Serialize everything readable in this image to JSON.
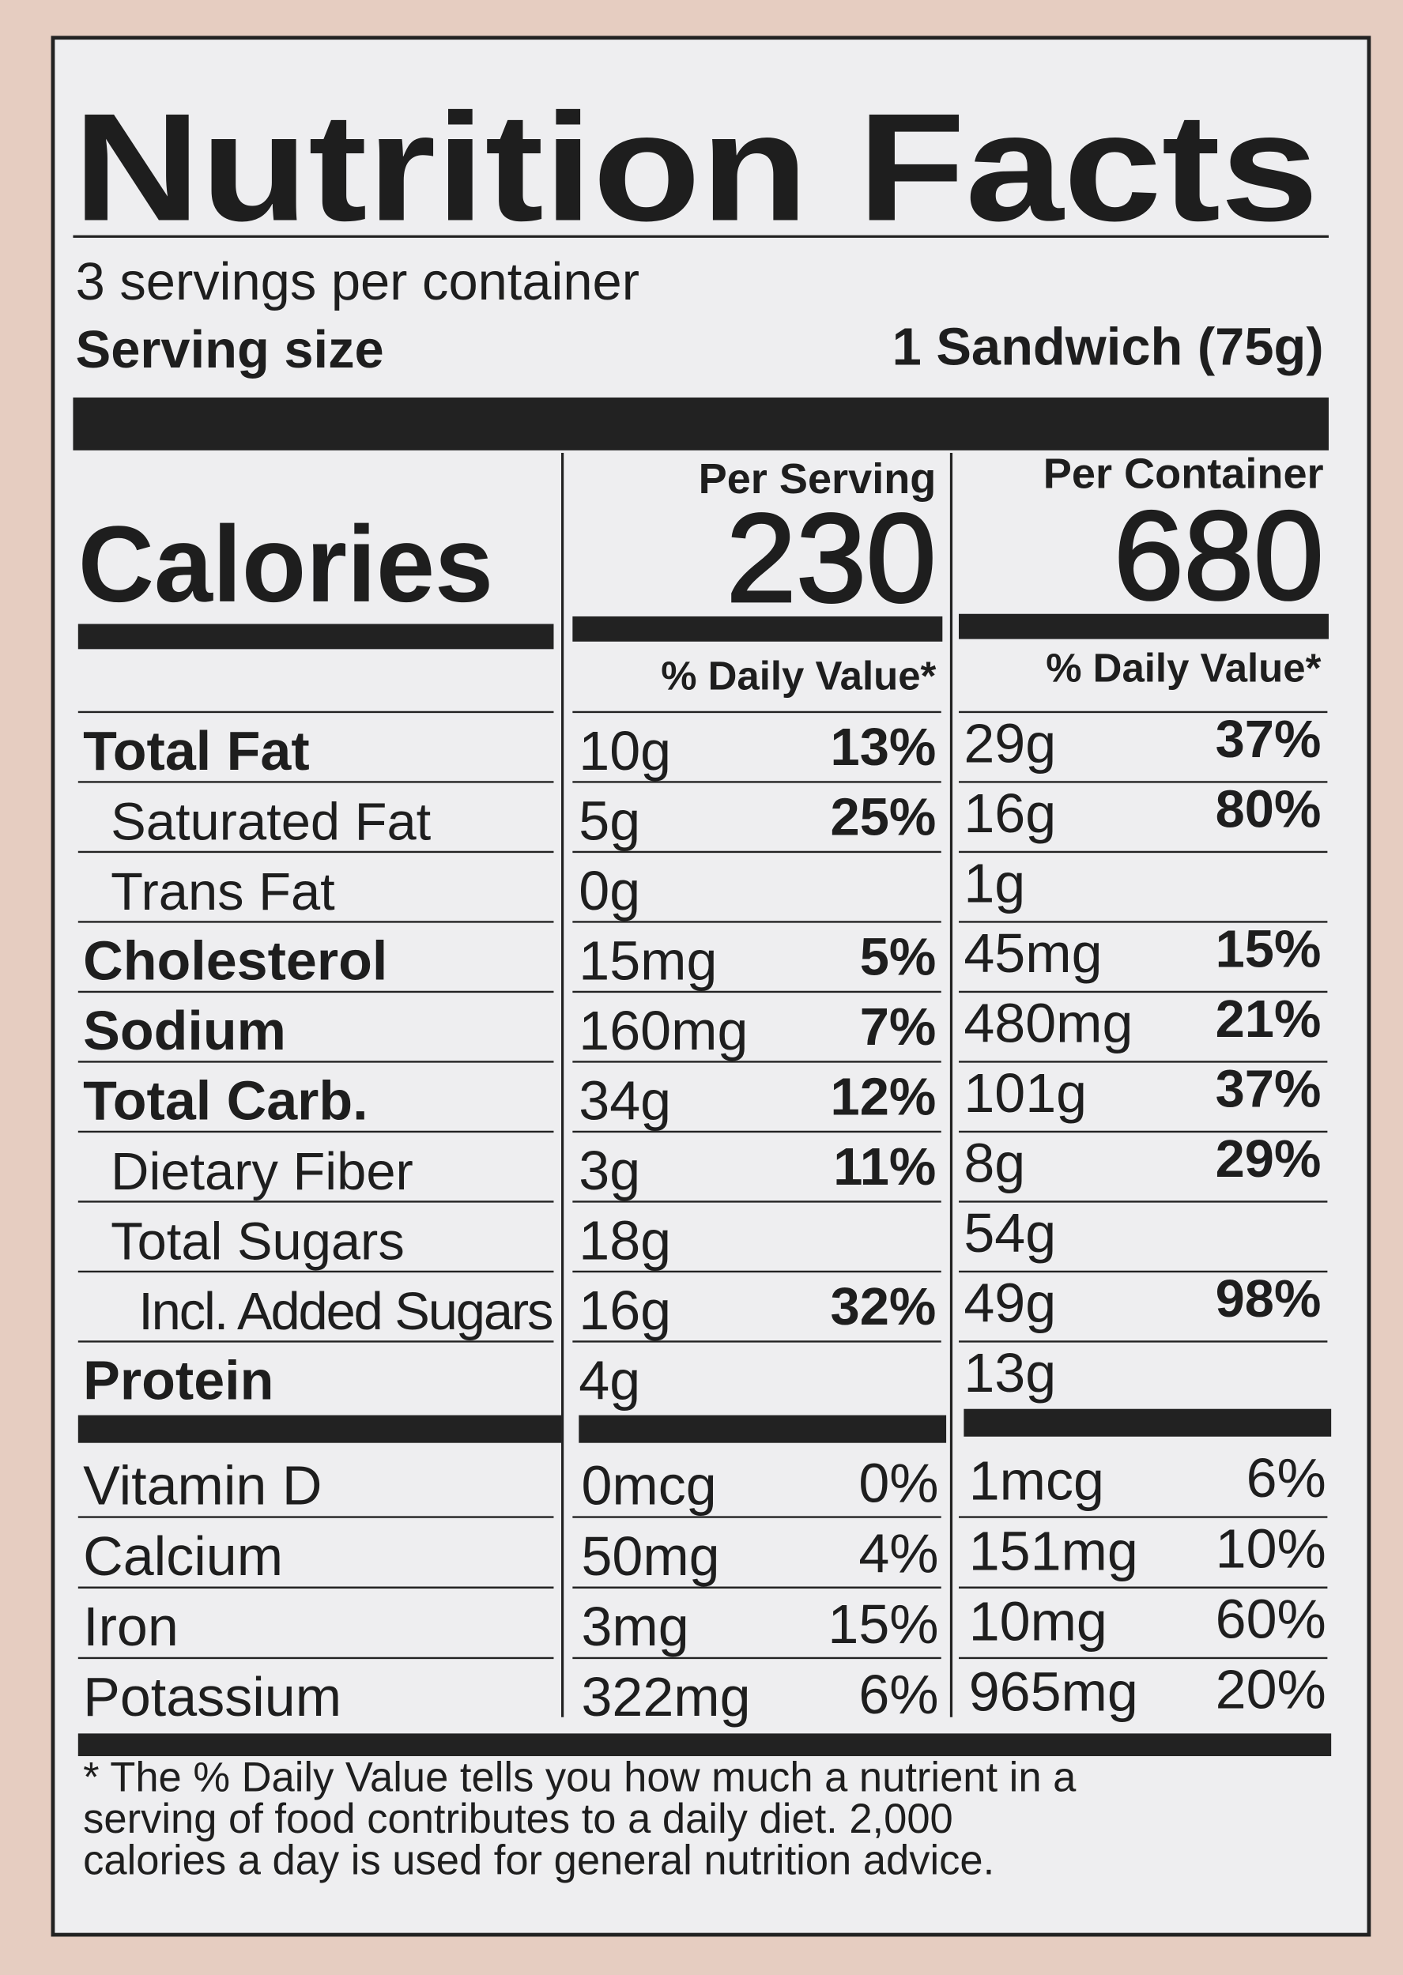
{
  "header": {
    "title": "Nutrition Facts",
    "servings": "3 servings per container",
    "serving_size_label": "Serving size",
    "serving_size_value": "1 Sandwich (75g)"
  },
  "calories": {
    "label": "Calories",
    "per_serving_label": "Per Serving",
    "per_serving": "230",
    "per_container_label": "Per Container",
    "per_container": "680",
    "dv_header_serving": "% Daily Value*",
    "dv_header_container": "% Daily Value*"
  },
  "nutrients": [
    [
      "Total Fat",
      "10g",
      "13%",
      "29g",
      "37%"
    ],
    [
      "Saturated Fat",
      "5g",
      "25%",
      "16g",
      "80%"
    ],
    [
      "Trans Fat",
      "0g",
      null,
      "1g",
      null
    ],
    [
      "Cholesterol",
      "15mg",
      "5%",
      "45mg",
      "15%"
    ],
    [
      "Sodium",
      "160mg",
      "7%",
      "480mg",
      "21%"
    ],
    [
      "Total Carb.",
      "34g",
      "12%",
      "101g",
      "37%"
    ],
    [
      "Dietary Fiber",
      "3g",
      "11%",
      "8g",
      "29%"
    ],
    [
      "Total Sugars",
      "18g",
      null,
      "54g",
      null
    ],
    [
      "Incl. Added Sugars",
      "16g",
      "32%",
      "49g",
      "98%"
    ],
    [
      "Protein",
      "4g",
      null,
      "13g",
      null
    ]
  ],
  "vitamins": [
    [
      "Vitamin D",
      "0mcg",
      "0%",
      "1mcg",
      "6%"
    ],
    [
      "Calcium",
      "50mg",
      "4%",
      "151mg",
      "10%"
    ],
    [
      "Iron",
      "3mg",
      "15%",
      "10mg",
      "60%"
    ],
    [
      "Potassium",
      "322mg",
      "6%",
      "965mg",
      "20%"
    ]
  ],
  "footnote": [
    "* The % Daily Value tells you how much a nutrient in a",
    "serving of food contributes to a daily diet. 2,000",
    "calories a day is used for general nutrition advice."
  ]
}
